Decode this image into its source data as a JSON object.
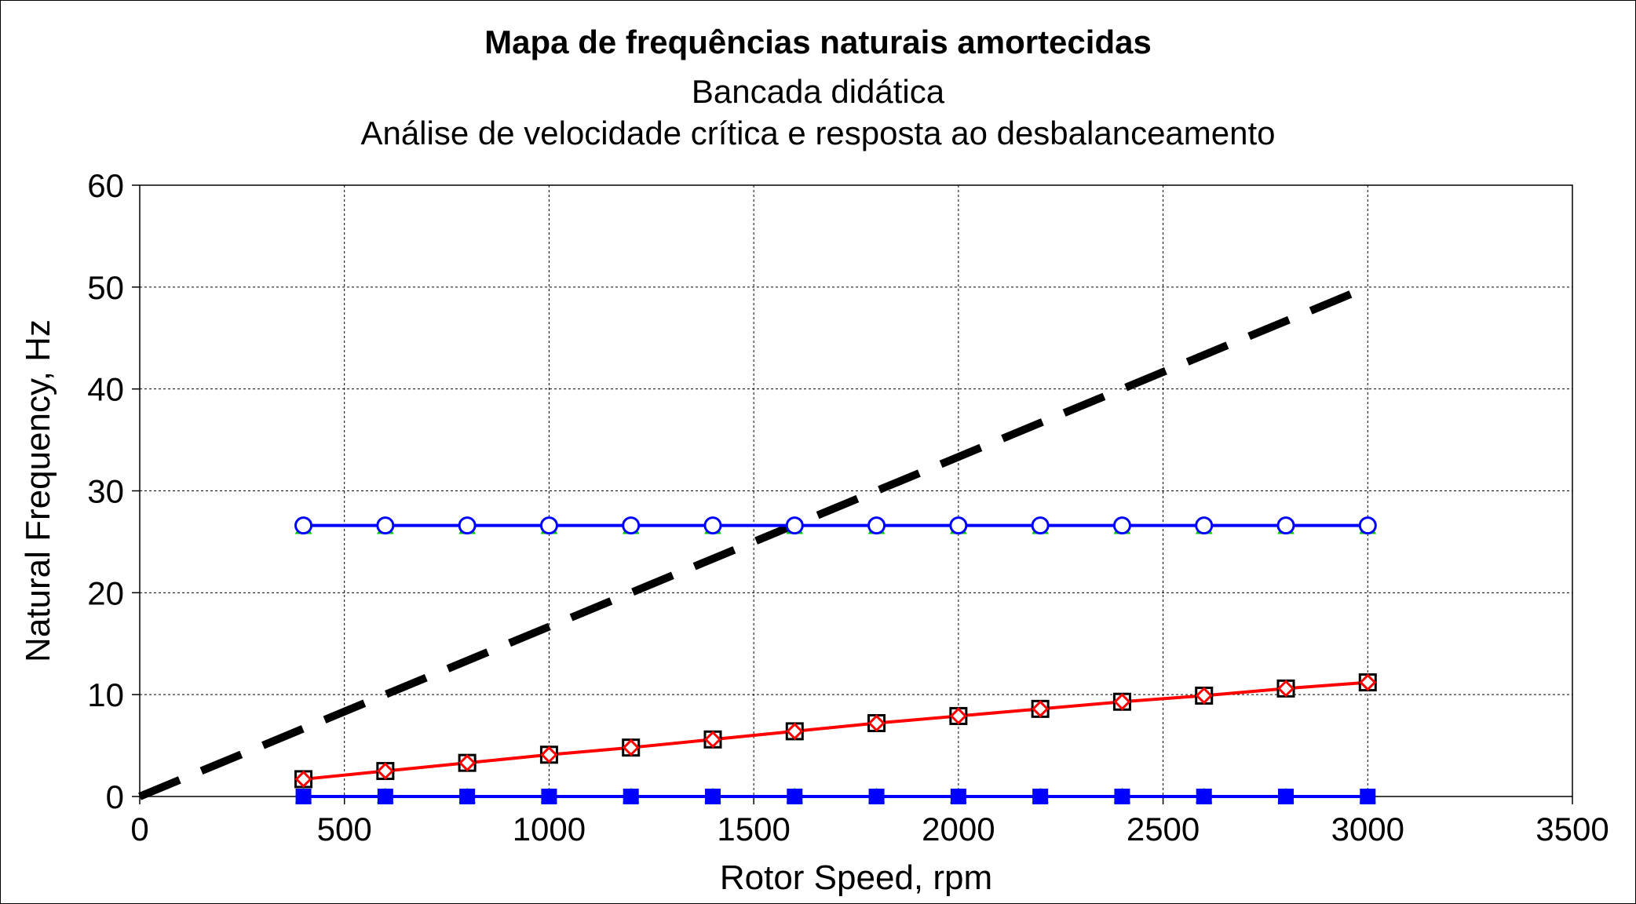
{
  "chart_data": {
    "type": "line",
    "title": "Mapa de frequências naturais amortecidas",
    "subtitle_lines": [
      "Bancada didática",
      "Análise de velocidade crítica e resposta ao desbalanceamento"
    ],
    "xlabel": "Rotor Speed, rpm",
    "ylabel": "Natural Frequency, Hz",
    "xlim": [
      0,
      3500
    ],
    "ylim": [
      0,
      60
    ],
    "xticks": [
      0,
      500,
      1000,
      1500,
      2000,
      2500,
      3000,
      3500
    ],
    "yticks": [
      0,
      10,
      20,
      30,
      40,
      50,
      60
    ],
    "grid": true,
    "legend": "none",
    "x": [
      400,
      600,
      800,
      1000,
      1200,
      1400,
      1600,
      1800,
      2000,
      2200,
      2400,
      2600,
      2800,
      3000
    ],
    "series": [
      {
        "values": [
          0.1,
          0.1,
          0.1,
          0.1,
          0.1,
          0.1,
          0.1,
          0.1,
          0.1,
          0.1,
          0.1,
          0.1,
          0.1,
          0.1
        ],
        "color": "#00cc00",
        "marker": "triangle",
        "line": "none"
      },
      {
        "values": [
          0,
          0,
          0,
          0,
          0,
          0,
          0,
          0,
          0,
          0,
          0,
          0,
          0,
          0
        ],
        "color": "#0000ff",
        "marker": "filled-square",
        "line": "solid"
      },
      {
        "values": [
          1.7,
          2.5,
          3.3,
          4.1,
          4.8,
          5.6,
          6.4,
          7.2,
          7.9,
          8.6,
          9.3,
          9.9,
          10.6,
          11.2
        ],
        "color": "#000000",
        "marker": "open-square",
        "line": "none"
      },
      {
        "values": [
          1.7,
          2.5,
          3.3,
          4.1,
          4.8,
          5.6,
          6.4,
          7.2,
          7.9,
          8.6,
          9.3,
          9.9,
          10.6,
          11.2
        ],
        "color": "#ff0000",
        "marker": "open-diamond",
        "line": "solid"
      },
      {
        "values": [
          26.5,
          26.5,
          26.5,
          26.5,
          26.5,
          26.5,
          26.5,
          26.5,
          26.5,
          26.5,
          26.5,
          26.5,
          26.5,
          26.5
        ],
        "color": "#00cc00",
        "marker": "triangle",
        "line": "none"
      },
      {
        "values": [
          26.6,
          26.6,
          26.6,
          26.6,
          26.6,
          26.6,
          26.6,
          26.6,
          26.6,
          26.6,
          26.6,
          26.6,
          26.6,
          26.6
        ],
        "color": "#0000ff",
        "marker": "open-circle",
        "line": "solid"
      }
    ],
    "reference_line": {
      "x": [
        0,
        3000
      ],
      "values": [
        0,
        50
      ],
      "color": "#000000",
      "style": "dashed"
    }
  }
}
